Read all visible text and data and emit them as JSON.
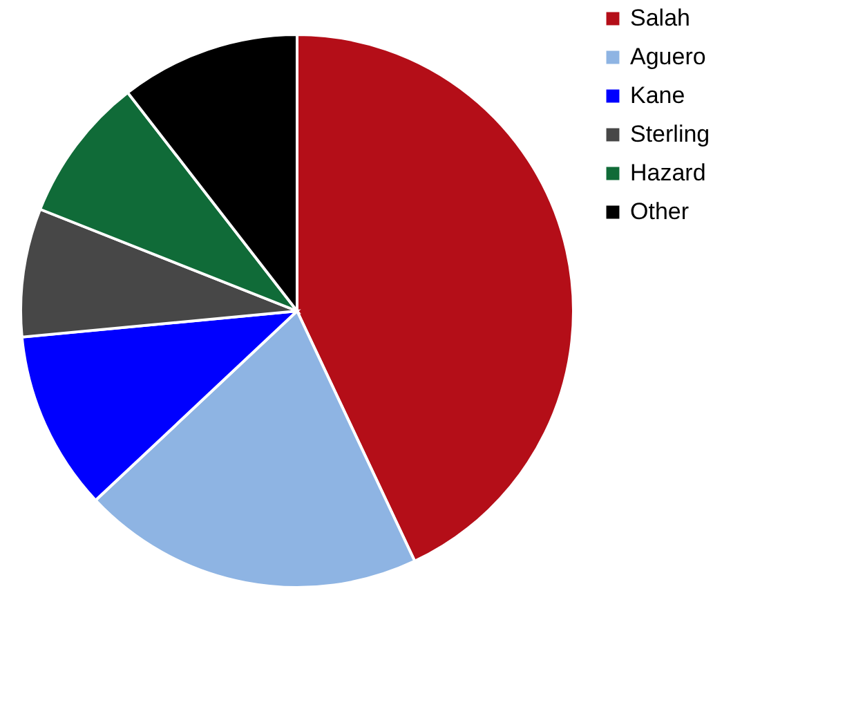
{
  "chart_data": {
    "type": "pie",
    "categories": [
      "Salah",
      "Aguero",
      "Kane",
      "Sterling",
      "Hazard",
      "Other"
    ],
    "values": [
      43,
      20,
      10.5,
      7.5,
      8.5,
      10.5
    ],
    "colors": [
      "#b40e18",
      "#8eb4e3",
      "#0000ff",
      "#474747",
      "#106b38",
      "#000000"
    ],
    "legend": "top right"
  }
}
